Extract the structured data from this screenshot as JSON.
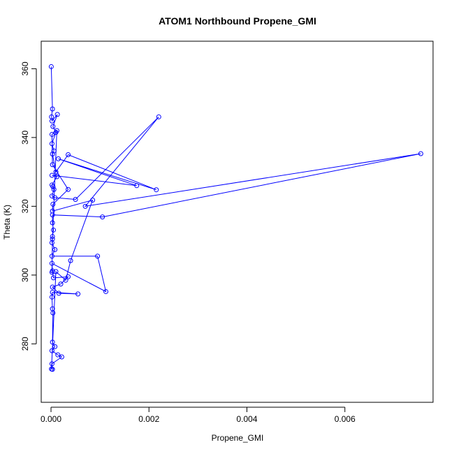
{
  "chart_data": {
    "type": "line",
    "title": "ATOM1 Northbound Propene_GMI",
    "xlabel": "Propene_GMI",
    "ylabel": "Theta (K)",
    "xlim": [
      -0.0002,
      0.0078
    ],
    "ylim": [
      263,
      368
    ],
    "x_ticks": [
      0.0,
      0.002,
      0.004,
      0.006
    ],
    "x_tick_labels": [
      "0.000",
      "0.002",
      "0.004",
      "0.006"
    ],
    "y_ticks": [
      280,
      300,
      320,
      340,
      360
    ],
    "y_tick_labels": [
      "280",
      "300",
      "320",
      "340",
      "360"
    ],
    "grid": false,
    "legend": "none",
    "series": [
      {
        "color": "#0000ff",
        "marker": "open-circle",
        "points": [
          [
            5e-06,
            360.6
          ],
          [
            3e-05,
            348.3
          ],
          [
            1e-05,
            346.0
          ],
          [
            2e-05,
            344.8
          ],
          [
            0.00013,
            346.7
          ],
          [
            4e-05,
            343.2
          ],
          [
            0.0001,
            341.5
          ],
          [
            2e-05,
            338.2
          ],
          [
            6e-05,
            336.1
          ],
          [
            3e-05,
            335.2
          ],
          [
            0.0001,
            330.0
          ],
          [
            0.00035,
            335.0
          ],
          [
            0.00215,
            324.8
          ],
          [
            0.00015,
            333.8
          ],
          [
            0.00175,
            326.0
          ],
          [
            2e-05,
            329.0
          ],
          [
            0.00012,
            328.6
          ],
          [
            2e-05,
            326.2
          ],
          [
            4e-05,
            325.7
          ],
          [
            6e-05,
            324.9
          ],
          [
            2e-05,
            323.0
          ],
          [
            8e-05,
            322.5
          ],
          [
            0.0005,
            322.0
          ],
          [
            0.0022,
            346.0
          ],
          [
            0.0007,
            320.0
          ],
          [
            0.00755,
            335.3
          ],
          [
            0.00105,
            316.9
          ],
          [
            3e-05,
            317.5
          ],
          [
            3e-05,
            315.2
          ],
          [
            5e-05,
            313.1
          ],
          [
            3e-05,
            311.2
          ],
          [
            2e-05,
            309.4
          ],
          [
            8e-05,
            307.4
          ],
          [
            2e-05,
            305.5
          ],
          [
            0.00095,
            305.5
          ],
          [
            0.00112,
            295.2
          ],
          [
            2e-05,
            303.4
          ],
          [
            3e-05,
            301.2
          ],
          [
            5e-05,
            299.2
          ],
          [
            0.00035,
            299.5
          ],
          [
            0.0002,
            297.4
          ],
          [
            3e-05,
            296.5
          ],
          [
            0.00016,
            294.7
          ],
          [
            0.00055,
            294.5
          ],
          [
            3e-05,
            295.0
          ],
          [
            2e-05,
            293.6
          ],
          [
            3e-05,
            290.2
          ],
          [
            4e-05,
            289.0
          ],
          [
            3e-05,
            280.5
          ],
          [
            8e-05,
            279.2
          ],
          [
            2e-05,
            278.0
          ],
          [
            0.00014,
            276.8
          ],
          [
            0.00022,
            276.2
          ],
          [
            2e-05,
            274.2
          ],
          [
            3e-05,
            272.6
          ],
          [
            1e-05,
            272.7
          ],
          [
            0.0001,
            301.0
          ],
          [
            0.0003,
            298.5
          ],
          [
            0.0004,
            304.2
          ],
          [
            0.00085,
            321.8
          ],
          [
            3e-05,
            318.6
          ],
          [
            4e-05,
            320.6
          ],
          [
            0.00035,
            324.9
          ],
          [
            3e-05,
            332.1
          ],
          [
            2e-05,
            340.9
          ],
          [
            0.00012,
            342.0
          ],
          [
            3e-05,
            310.5
          ],
          [
            2e-05,
            300.8
          ]
        ]
      }
    ]
  }
}
